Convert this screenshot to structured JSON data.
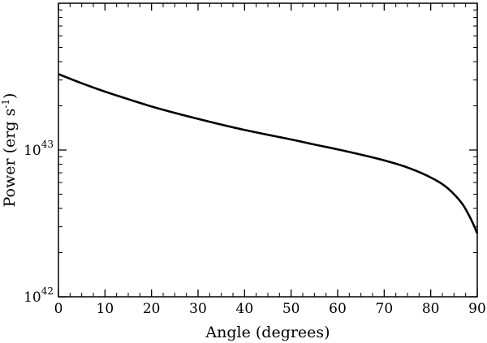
{
  "chart_data": {
    "type": "line",
    "title": "",
    "xlabel": "Angle (degrees)",
    "ylabel_main": "Power (erg s",
    "ylabel_exp": "-1",
    "ylabel_close": ")",
    "xlim": [
      0,
      90
    ],
    "ylim": [
      1e+42,
      1e+44
    ],
    "yscale": "log",
    "grid": false,
    "legend": false,
    "x_ticks": [
      0,
      10,
      20,
      30,
      40,
      50,
      60,
      70,
      80,
      90
    ],
    "x_tick_labels": [
      "0",
      "10",
      "20",
      "30",
      "40",
      "50",
      "60",
      "70",
      "80",
      "90"
    ],
    "y_ticks": [
      {
        "value": 1e+42,
        "base": "10",
        "exp": "42"
      },
      {
        "value": 1e+43,
        "base": "10",
        "exp": "43"
      }
    ],
    "series": [
      {
        "x": [
          0,
          5,
          10,
          15,
          20,
          25,
          30,
          35,
          40,
          45,
          50,
          55,
          60,
          65,
          70,
          75,
          80,
          83,
          85,
          87,
          88,
          89,
          90
        ],
        "y": [
          3.29e+43,
          2.85e+43,
          2.5e+43,
          2.22e+43,
          1.98e+43,
          1.79e+43,
          1.63e+43,
          1.49e+43,
          1.37e+43,
          1.27e+43,
          1.18e+43,
          1.09e+43,
          1.01e+43,
          9.3e+42,
          8.5e+42,
          7.6e+42,
          6.5e+42,
          5.7e+42,
          5e+42,
          4.2e+42,
          3.7e+42,
          3.2e+42,
          2.7e+42
        ]
      }
    ],
    "colors": {
      "line": "#000000",
      "axes": "#000000"
    }
  }
}
